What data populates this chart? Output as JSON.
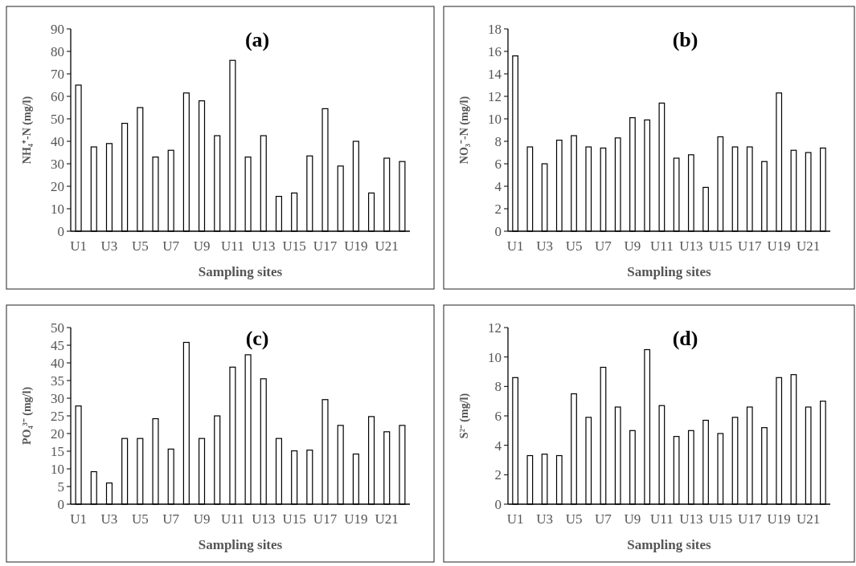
{
  "chart_data": [
    {
      "type": "bar",
      "title": "(a)",
      "xlabel": "Sampling sites",
      "ylabel": "NH₄⁺-N (mg/l)",
      "categories": [
        "U1",
        null,
        "U3",
        null,
        "U5",
        null,
        "U7",
        null,
        "U9",
        null,
        "U11",
        null,
        "U13",
        null,
        "U15",
        null,
        "U17",
        null,
        "U19",
        null,
        "U21",
        null
      ],
      "color": "#ffffff",
      "values": [
        65,
        37.5,
        39,
        48,
        55,
        33,
        36,
        61.5,
        58,
        42.5,
        76,
        33,
        42.5,
        15.5,
        17,
        33.5,
        54.5,
        29,
        40,
        17,
        32.5,
        31
      ],
      "ylim": [
        0,
        90
      ],
      "yticks": [
        0,
        10,
        20,
        30,
        40,
        50,
        60,
        70,
        80,
        90
      ]
    },
    {
      "type": "bar",
      "title": "(b)",
      "xlabel": "Sampling sites",
      "ylabel": "NO₃⁻-N (mg/l)",
      "categories": [
        "U1",
        null,
        "U3",
        null,
        "U5",
        null,
        "U7",
        null,
        "U9",
        null,
        "U11",
        null,
        "U13",
        null,
        "U15",
        null,
        "U17",
        null,
        "U19",
        null,
        "U21",
        null
      ],
      "color": "#ffffff",
      "values": [
        15.6,
        7.5,
        6,
        8.1,
        8.5,
        7.5,
        7.4,
        8.3,
        10.1,
        9.9,
        11.4,
        6.5,
        6.8,
        3.9,
        8.4,
        7.5,
        7.5,
        6.2,
        12.3,
        7.2,
        7,
        7.4
      ],
      "ylim": [
        0,
        18
      ],
      "yticks": [
        0,
        2,
        4,
        6,
        8,
        10,
        12,
        14,
        16,
        18
      ]
    },
    {
      "type": "bar",
      "title": "(c)",
      "xlabel": "Sampling sites",
      "ylabel": "PO₄³⁻ (mg/l)",
      "categories": [
        "U1",
        null,
        "U3",
        null,
        "U5",
        null,
        "U7",
        null,
        "U9",
        null,
        "U11",
        null,
        "U13",
        null,
        "U15",
        null,
        "U17",
        null,
        "U19",
        null,
        "U21",
        null
      ],
      "color": "#ffffff",
      "values": [
        27.8,
        9.2,
        6,
        18.6,
        18.6,
        24.2,
        15.6,
        45.8,
        18.6,
        25,
        38.8,
        42.3,
        35.5,
        18.6,
        15.1,
        15.3,
        29.6,
        22.3,
        14.2,
        24.8,
        20.5,
        22.3
      ],
      "ylim": [
        0,
        50
      ],
      "yticks": [
        0,
        5,
        10,
        15,
        20,
        25,
        30,
        35,
        40,
        45,
        50
      ]
    },
    {
      "type": "bar",
      "title": "(d)",
      "xlabel": "Sampling sites",
      "ylabel": "S²⁻ (mg/l)",
      "categories": [
        "U1",
        null,
        "U3",
        null,
        "U5",
        null,
        "U7",
        null,
        "U9",
        null,
        "U11",
        null,
        "U13",
        null,
        "U15",
        null,
        "U17",
        null,
        "U19",
        null,
        "U21",
        null
      ],
      "color": "#ffffff",
      "values": [
        8.6,
        3.3,
        3.4,
        3.3,
        7.5,
        5.9,
        9.3,
        6.6,
        5,
        10.5,
        6.7,
        4.6,
        5,
        5.7,
        4.8,
        5.9,
        6.6,
        5.2,
        8.6,
        8.8,
        6.6,
        7
      ],
      "ylim": [
        0,
        12
      ],
      "yticks": [
        0,
        2,
        4,
        6,
        8,
        10,
        12
      ]
    }
  ]
}
